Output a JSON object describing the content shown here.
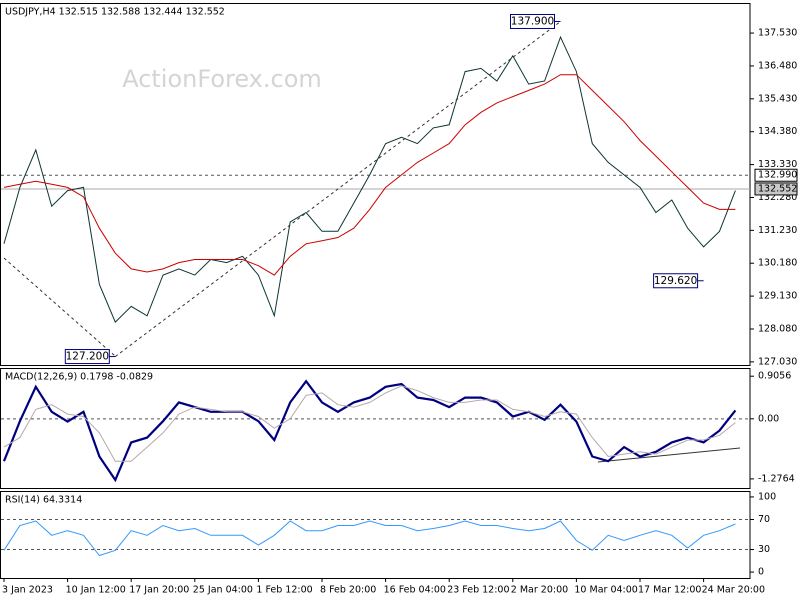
{
  "chart_data": [
    {
      "type": "line",
      "title": "USDJPY,H4 132.515 132.588 132.444 132.552",
      "watermark": "ActionForex.com",
      "categories": [
        "3 Jan 2023",
        null,
        null,
        null,
        "10 Jan 12:00",
        null,
        null,
        null,
        "17 Jan 20:00",
        null,
        null,
        null,
        "25 Jan 04:00",
        null,
        null,
        null,
        "1 Feb 12:00",
        null,
        null,
        null,
        "8 Feb 20:00",
        null,
        null,
        null,
        "16 Feb 04:00",
        null,
        null,
        null,
        "23 Feb 12:00",
        null,
        null,
        null,
        "2 Mar 20:00",
        null,
        null,
        null,
        "10 Mar 04:00",
        null,
        null,
        null,
        "17 Mar 12:00",
        null,
        null,
        null,
        "24 Mar 20:00",
        null,
        null
      ],
      "series": [
        {
          "color": "#0d3333",
          "width": 1,
          "values": [
            130.8,
            132.6,
            133.8,
            132.0,
            132.5,
            132.6,
            129.5,
            128.3,
            128.8,
            128.5,
            129.8,
            130.0,
            129.8,
            130.3,
            130.2,
            130.4,
            129.8,
            128.5,
            131.5,
            131.8,
            131.2,
            131.2,
            132.1,
            133.0,
            134.0,
            134.2,
            134.0,
            134.5,
            134.6,
            136.3,
            136.4,
            136.0,
            136.8,
            135.9,
            136.0,
            137.4,
            136.3,
            134.0,
            133.4,
            133.0,
            132.6,
            131.8,
            132.2,
            131.3,
            130.7,
            131.2,
            132.5
          ]
        },
        {
          "color": "#cc0000",
          "width": 1,
          "values": [
            132.6,
            132.7,
            132.8,
            132.7,
            132.6,
            132.3,
            131.3,
            130.5,
            130.0,
            129.9,
            130.0,
            130.2,
            130.3,
            130.3,
            130.3,
            130.3,
            130.1,
            129.8,
            130.4,
            130.8,
            130.9,
            131.0,
            131.3,
            131.9,
            132.6,
            133.0,
            133.4,
            133.7,
            134.0,
            134.6,
            135.0,
            135.3,
            135.5,
            135.7,
            135.9,
            136.2,
            136.2,
            135.7,
            135.2,
            134.7,
            134.1,
            133.6,
            133.1,
            132.6,
            132.1,
            131.9,
            131.9
          ]
        }
      ],
      "ylim": [
        126.93,
        138.49
      ],
      "yticks": [
        {
          "value": 137.53,
          "label": "137.530"
        },
        {
          "value": 136.48,
          "label": "136.480"
        },
        {
          "value": 135.43,
          "label": "135.430"
        },
        {
          "value": 134.38,
          "label": "134.380"
        },
        {
          "value": 133.33,
          "label": "133.330"
        },
        {
          "value": 132.28,
          "label": "132.280"
        },
        {
          "value": 131.23,
          "label": "131.230"
        },
        {
          "value": 130.18,
          "label": "130.180"
        },
        {
          "value": 129.13,
          "label": "129.130"
        },
        {
          "value": 128.08,
          "label": "128.080"
        },
        {
          "value": 127.03,
          "label": "127.030"
        }
      ],
      "levels": [
        {
          "value": 132.99,
          "label": "132.990"
        }
      ],
      "last": {
        "value": 132.552,
        "label": "132.552"
      },
      "annotations": [
        {
          "value": 137.9,
          "label": "137.900",
          "index": 35
        },
        {
          "value": 129.62,
          "label": "129.620",
          "index": 44
        },
        {
          "value": 127.2,
          "label": "127.200",
          "index": 7
        }
      ]
    },
    {
      "type": "line",
      "title": "MACD(12,26,9) 0.1798 -0.0829",
      "series": [
        {
          "color": "#000080",
          "width": 2.2,
          "values": [
            -0.9,
            -0.05,
            0.68,
            0.15,
            -0.06,
            0.15,
            -0.8,
            -1.3,
            -0.5,
            -0.4,
            -0.05,
            0.35,
            0.25,
            0.15,
            0.15,
            0.15,
            -0.05,
            -0.45,
            0.35,
            0.8,
            0.35,
            0.15,
            0.35,
            0.45,
            0.68,
            0.74,
            0.45,
            0.4,
            0.25,
            0.45,
            0.45,
            0.35,
            0.05,
            0.15,
            -0.02,
            0.3,
            -0.06,
            -0.8,
            -0.9,
            -0.6,
            -0.8,
            -0.7,
            -0.5,
            -0.4,
            -0.5,
            -0.25,
            0.18
          ]
        },
        {
          "color": "#b8a8a8",
          "width": 1,
          "values": [
            -0.6,
            -0.4,
            0.2,
            0.3,
            0.1,
            0.05,
            -0.3,
            -0.9,
            -0.9,
            -0.6,
            -0.3,
            0.1,
            0.25,
            0.2,
            0.15,
            0.15,
            0.05,
            -0.2,
            0.0,
            0.5,
            0.55,
            0.3,
            0.25,
            0.35,
            0.55,
            0.7,
            0.6,
            0.45,
            0.35,
            0.35,
            0.4,
            0.4,
            0.2,
            0.15,
            0.05,
            0.15,
            0.1,
            -0.4,
            -0.8,
            -0.75,
            -0.7,
            -0.75,
            -0.6,
            -0.45,
            -0.45,
            -0.35,
            -0.08
          ]
        }
      ],
      "ylim": [
        -1.47,
        1.08
      ],
      "yticks": [
        0.9056,
        {
          "value": 0,
          "label": "0.00"
        },
        -1.2764
      ],
      "levels": [
        0
      ]
    },
    {
      "type": "line",
      "title": "RSI(14) 64.3314",
      "series": [
        {
          "color": "#3399ff",
          "width": 1,
          "values": [
            29,
            62,
            68,
            49,
            55,
            49,
            22,
            29,
            55,
            49,
            62,
            55,
            58,
            49,
            49,
            49,
            36,
            49,
            68,
            55,
            55,
            62,
            62,
            68,
            62,
            62,
            55,
            58,
            62,
            68,
            62,
            62,
            58,
            55,
            58,
            68,
            42,
            29,
            49,
            42,
            49,
            55,
            49,
            32,
            49,
            55,
            64
          ]
        }
      ],
      "ylim": [
        -7.9,
        107.9
      ],
      "yticks": [
        100,
        70,
        30,
        0
      ],
      "levels": [
        70,
        30
      ]
    }
  ]
}
